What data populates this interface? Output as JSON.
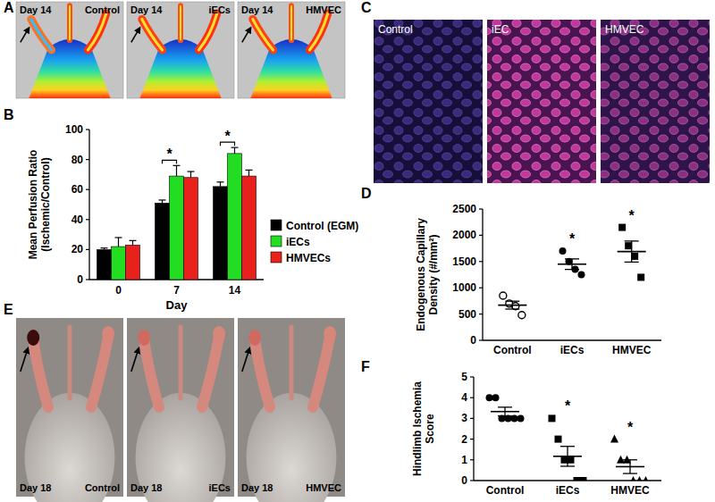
{
  "panel_labels": [
    "A",
    "B",
    "C",
    "D",
    "E",
    "F"
  ],
  "image_panels": [
    {
      "day": "Day 14",
      "images": [
        "Control",
        "iECs",
        "HMVEC"
      ]
    },
    {
      "images": [
        "Control",
        "iEC",
        "HMVEC"
      ]
    },
    {
      "day": "Day 18",
      "images": [
        "Control",
        "iECs",
        "HMVEC"
      ]
    }
  ],
  "chart_data": [
    {
      "type": "bar",
      "y_label": "Mean Perfusion Ratio (Ischemic/Control)",
      "x_label": "Day",
      "categories": [
        "0",
        "7",
        "14"
      ],
      "series": [
        {
          "name": "Control (EGM)",
          "color": "#000000",
          "values": [
            20,
            51,
            62
          ],
          "errors": [
            1,
            2,
            3
          ]
        },
        {
          "name": "iECs",
          "color": "#22dd22",
          "values": [
            22,
            69,
            84
          ],
          "errors": [
            6,
            7,
            4
          ]
        },
        {
          "name": "HMVECs",
          "color": "#e8211c",
          "values": [
            23,
            68,
            69
          ],
          "errors": [
            3,
            4,
            4
          ]
        }
      ],
      "ylim": [
        0,
        100
      ],
      "yticks": [
        0,
        20,
        40,
        60,
        80,
        100
      ],
      "legend": "right",
      "annotations": [
        {
          "text": "*",
          "category": "7"
        },
        {
          "text": "*",
          "category": "14"
        }
      ]
    },
    {
      "type": "scatter",
      "y_label": "Endogenous Capillary Density (#/mm²)",
      "categories": [
        "Control",
        "iECs",
        "HMVEC"
      ],
      "groups": [
        {
          "marker": "open-circle",
          "values": [
            850,
            700,
            650,
            480
          ],
          "mean": 670,
          "sem": 75
        },
        {
          "marker": "circle",
          "values": [
            1700,
            1500,
            1350,
            1250
          ],
          "mean": 1450,
          "sem": 100
        },
        {
          "marker": "square",
          "values": [
            2150,
            1800,
            1600,
            1200
          ],
          "mean": 1690,
          "sem": 200
        }
      ],
      "ylim": [
        0,
        2500
      ],
      "yticks": [
        0,
        500,
        1000,
        1500,
        2000,
        2500
      ],
      "annotations": [
        {
          "text": "*",
          "category": "iECs"
        },
        {
          "text": "*",
          "category": "HMVEC"
        }
      ]
    },
    {
      "type": "scatter",
      "y_label": "Hindlimb Ischemia Score",
      "categories": [
        "Control",
        "iECs",
        "HMVEC"
      ],
      "groups": [
        {
          "marker": "circle",
          "values": [
            4,
            4,
            3,
            3,
            3,
            3
          ],
          "mean": 3.33,
          "sem": 0.21
        },
        {
          "marker": "square",
          "values": [
            3,
            2,
            1,
            1,
            0,
            0
          ],
          "mean": 1.17,
          "sem": 0.48
        },
        {
          "marker": "triangle",
          "values": [
            2,
            1,
            1,
            0,
            0,
            0
          ],
          "mean": 0.67,
          "sem": 0.33
        }
      ],
      "ylim": [
        0,
        5
      ],
      "yticks": [
        0,
        1,
        2,
        3,
        4,
        5
      ],
      "annotations": [
        {
          "text": "*",
          "category": "iECs"
        },
        {
          "text": "*",
          "category": "HMVEC"
        }
      ]
    }
  ]
}
